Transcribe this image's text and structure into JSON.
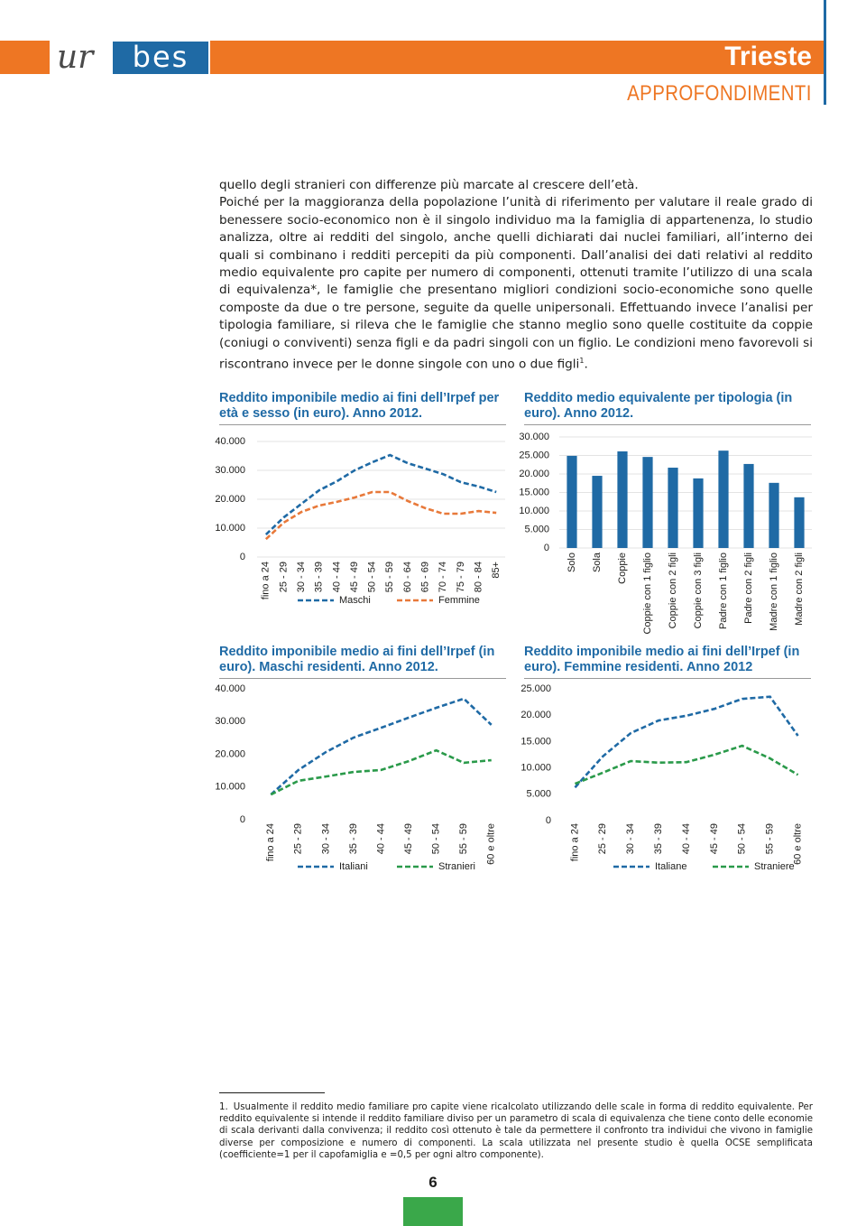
{
  "header": {
    "logo_left": "ur",
    "logo_right": "bes",
    "city": "Trieste",
    "section": "APPROFONDIMENTI"
  },
  "body": {
    "paragraphs": [
      "quello degli stranieri con differenze più marcate al crescere dell’età.",
      "Poiché per la maggioranza della popolazione l’unità di riferimento per valutare il reale grado di benessere socio-economico non è il singolo individuo ma la famiglia di appartenenza, lo studio analizza, oltre ai redditi del singolo, anche quelli dichiarati dai nuclei familiari, all’interno dei quali si combinano i redditi percepiti da più componenti. Dall’analisi dei dati relativi al reddito medio equivalente pro capite per numero di componenti, ottenuti tramite l’utilizzo di una scala di equivalenza*, le famiglie che presentano migliori condizioni socio-economiche sono quelle composte da due o tre persone, seguite da quelle unipersonali. Effettuando invece l’analisi per tipologia familiare, si rileva che le famiglie che stanno meglio sono quelle costituite da coppie (coniugi o conviventi) senza figli e da padri singoli con un figlio. Le condizioni meno favorevoli si riscontrano invece per le donne singole con uno o due figli"
    ],
    "footnote_ref": "1",
    "end": "."
  },
  "chart_data": [
    {
      "type": "line",
      "title": "Reddito imponibile medio ai fini dell’Irpef per età e sesso (in euro). Anno 2012.",
      "categories": [
        "fino a 24",
        "25 - 29",
        "30 - 34",
        "35 - 39",
        "40 - 44",
        "45 - 49",
        "50 - 54",
        "55 - 59",
        "60 - 64",
        "65 - 69",
        "70 - 74",
        "75 - 79",
        "80 - 84",
        "85+"
      ],
      "series": [
        {
          "name": "Maschi",
          "color": "#1f6aa5",
          "values": [
            7800,
            13700,
            18400,
            23100,
            26200,
            30000,
            32800,
            35300,
            32500,
            30600,
            28700,
            25900,
            24400,
            22500
          ]
        },
        {
          "name": "Femmine",
          "color": "#e8793a",
          "values": [
            6200,
            11900,
            15600,
            17800,
            19100,
            20600,
            22500,
            22500,
            19400,
            16900,
            15000,
            15000,
            15900,
            15300
          ]
        }
      ],
      "ylim": [
        0,
        40000
      ],
      "yticks": [
        0,
        {
          "value": 10000,
          "label": "10.000"
        },
        {
          "value": 20000,
          "label": "20.000"
        },
        {
          "value": 30000,
          "label": "30.000"
        },
        {
          "value": 40000,
          "label": "40.000"
        }
      ],
      "grid": true
    },
    {
      "type": "bar",
      "title": "Reddito medio equivalente per tipologia (in euro). Anno 2012.",
      "categories": [
        "Solo",
        "Sola",
        "Coppie",
        "Coppie con 1 figlio",
        "Coppie con 2 figli",
        "Coppie con 3 figli",
        "Padre con 1 figlio",
        "Padre con 2 figli",
        "Madre con 1 figlio",
        "Madre con 2 figli"
      ],
      "values": [
        24900,
        19500,
        26100,
        24600,
        21700,
        18800,
        26300,
        22700,
        17600,
        13700
      ],
      "color": "#1f6aa5",
      "ylim": [
        0,
        30000
      ],
      "yticks": [
        0,
        {
          "value": 5000,
          "label": "5.000"
        },
        {
          "value": 10000,
          "label": "10.000"
        },
        {
          "value": 15000,
          "label": "15.000"
        },
        {
          "value": 20000,
          "label": "20.000"
        },
        {
          "value": 25000,
          "label": "25.000"
        },
        {
          "value": 30000,
          "label": "30.000"
        }
      ],
      "grid": true
    },
    {
      "type": "line",
      "title": "Reddito imponibile medio ai fini dell’Irpef (in euro). Maschi residenti. Anno 2012.",
      "categories": [
        "fino a 24",
        "25 - 29",
        "30 - 34",
        "35 - 39",
        "40 - 44",
        "45 - 49",
        "50 - 54",
        "55 - 59",
        "60 e oltre"
      ],
      "series": [
        {
          "name": "Italiani",
          "color": "#1f6aa5",
          "values": [
            7700,
            15200,
            20700,
            25100,
            28100,
            31200,
            34200,
            37000,
            29000
          ]
        },
        {
          "name": "Stranieri",
          "color": "#2a9a4a",
          "values": [
            7700,
            11900,
            13200,
            14600,
            15200,
            17900,
            21200,
            17400,
            18200
          ]
        }
      ],
      "ylim": [
        0,
        40000
      ],
      "yticks": [
        0,
        {
          "value": 10000,
          "label": "10.000"
        },
        {
          "value": 20000,
          "label": "20.000"
        },
        {
          "value": 30000,
          "label": "30.000"
        },
        {
          "value": 40000,
          "label": "40.000"
        }
      ],
      "grid": false
    },
    {
      "type": "line",
      "title": "Reddito imponibile medio ai fini dell’Irpef (in euro). Femmine residenti. Anno 2012",
      "categories": [
        "fino a 24",
        "25 - 29",
        "30 - 34",
        "35 - 39",
        "40 - 44",
        "45 - 49",
        "50 - 54",
        "55 - 59",
        "60 e oltre"
      ],
      "series": [
        {
          "name": "Italiane",
          "color": "#1f6aa5",
          "values": [
            6300,
            12200,
            16600,
            19000,
            19900,
            21200,
            23100,
            23500,
            16100
          ]
        },
        {
          "name": "Straniere",
          "color": "#2a9a4a",
          "values": [
            7000,
            9100,
            11300,
            11000,
            11100,
            12500,
            14200,
            11800,
            8700
          ]
        }
      ],
      "ylim": [
        0,
        25000
      ],
      "yticks": [
        0,
        {
          "value": 5000,
          "label": "5.000"
        },
        {
          "value": 10000,
          "label": "10.000"
        },
        {
          "value": 15000,
          "label": "15.000"
        },
        {
          "value": 20000,
          "label": "20.000"
        },
        {
          "value": 25000,
          "label": "25.000"
        }
      ],
      "grid": false
    }
  ],
  "footnote": {
    "number": "1.",
    "text": "Usualmente il reddito medio familiare pro capite viene ricalcolato utilizzando delle scale in forma di reddito equivalente. Per reddito equivalente si intende il reddito familiare diviso per un parametro di scala di equivalenza che tiene conto delle economie di scala derivanti dalla convivenza; il reddito così ottenuto è tale da permettere il confronto tra individui che vivono in famiglie diverse per composizione e numero di componenti. La scala utilizzata nel presente studio è quella OCSE semplificata (coefficiente=1 per il capofamiglia e =0,5 per ogni altro componente)."
  },
  "page_number": "6"
}
